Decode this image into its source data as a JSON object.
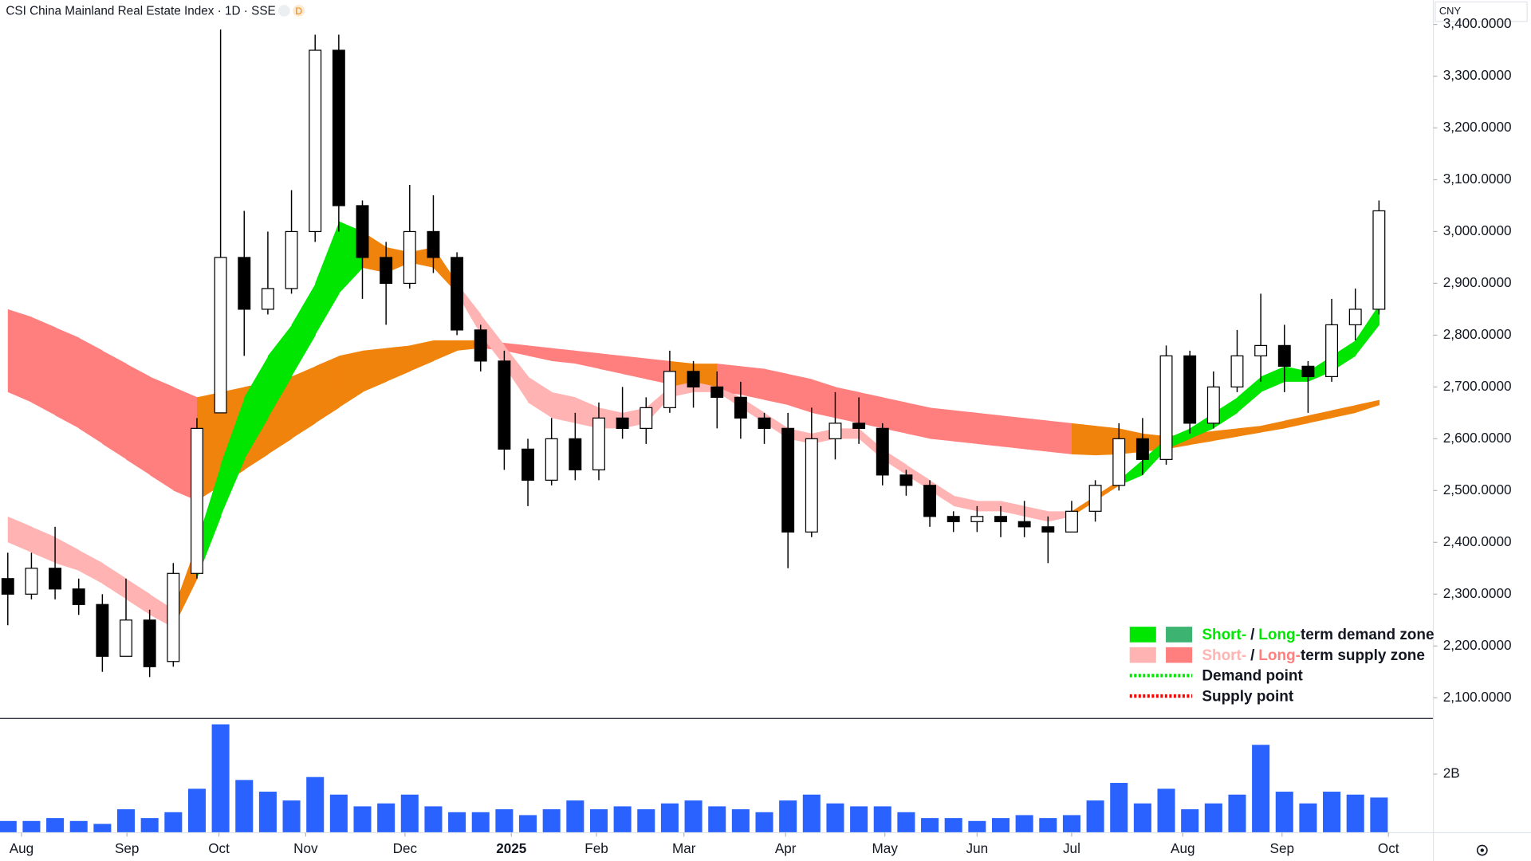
{
  "header": {
    "title": "CSI China Mainland Real Estate Index · 1D · SSE",
    "badge": "D"
  },
  "chart_data": {
    "type": "candlestick",
    "currency": "CNY",
    "open": [
      2330,
      2300,
      2350,
      2310,
      2280,
      2180,
      2250,
      2170,
      2340,
      2650,
      2950,
      2850,
      2890,
      3000,
      3350,
      3050,
      2950,
      2900,
      3000,
      2950,
      2810,
      2750,
      2580,
      2520,
      2600,
      2540,
      2640,
      2620,
      2660,
      2730,
      2700,
      2680,
      2640,
      2620,
      2420,
      2600,
      2630,
      2620,
      2530,
      2510,
      2450,
      2440,
      2450,
      2440,
      2430,
      2420,
      2460,
      2510,
      2600,
      2560,
      2760,
      2630,
      2700,
      2760,
      2780,
      2740,
      2720,
      2820,
      2850
    ],
    "high": [
      2380,
      2380,
      2430,
      2330,
      2300,
      2330,
      2270,
      2360,
      2640,
      3390,
      3040,
      3000,
      3080,
      3380,
      3380,
      3060,
      2980,
      3090,
      3070,
      2960,
      2820,
      2770,
      2600,
      2640,
      2650,
      2670,
      2700,
      2680,
      2770,
      2750,
      2730,
      2710,
      2650,
      2650,
      2660,
      2690,
      2680,
      2630,
      2540,
      2520,
      2460,
      2470,
      2470,
      2480,
      2450,
      2480,
      2520,
      2630,
      2640,
      2780,
      2770,
      2730,
      2810,
      2880,
      2820,
      2750,
      2870,
      2890,
      3060
    ],
    "low": [
      2240,
      2290,
      2290,
      2260,
      2150,
      2180,
      2140,
      2160,
      2330,
      2650,
      2760,
      2840,
      2880,
      2980,
      3000,
      2870,
      2820,
      2890,
      2920,
      2800,
      2730,
      2540,
      2470,
      2510,
      2520,
      2520,
      2600,
      2590,
      2650,
      2660,
      2620,
      2600,
      2590,
      2350,
      2410,
      2560,
      2590,
      2510,
      2490,
      2430,
      2420,
      2420,
      2410,
      2410,
      2360,
      2420,
      2440,
      2500,
      2530,
      2550,
      2610,
      2620,
      2690,
      2710,
      2690,
      2650,
      2710,
      2790,
      2840
    ],
    "close": [
      2300,
      2350,
      2310,
      2280,
      2180,
      2250,
      2160,
      2340,
      2620,
      2950,
      2850,
      2890,
      3000,
      3350,
      3050,
      2950,
      2900,
      3000,
      2950,
      2810,
      2750,
      2580,
      2520,
      2600,
      2540,
      2640,
      2620,
      2660,
      2730,
      2700,
      2680,
      2640,
      2620,
      2420,
      2600,
      2630,
      2620,
      2530,
      2510,
      2450,
      2440,
      2450,
      2440,
      2430,
      2420,
      2460,
      2510,
      2600,
      2560,
      2760,
      2630,
      2700,
      2760,
      2780,
      2740,
      2720,
      2820,
      2850,
      3040
    ],
    "up_color": "#ffffff",
    "down_color": "#000000",
    "border_color": "#000000",
    "xlim": [
      -0.33,
      60.3
    ],
    "xticks": [
      {
        "value": 0.58,
        "label": "Aug"
      },
      {
        "value": 5.04,
        "label": "Sep"
      },
      {
        "value": 8.93,
        "label": "Oct"
      },
      {
        "value": 12.6,
        "label": "Nov"
      },
      {
        "value": 16.8,
        "label": "Dec"
      },
      {
        "value": 21.3,
        "label": "2025",
        "bold": true
      },
      {
        "value": 24.9,
        "label": "Feb"
      },
      {
        "value": 28.6,
        "label": "Mar"
      },
      {
        "value": 32.9,
        "label": "Apr"
      },
      {
        "value": 37.1,
        "label": "May"
      },
      {
        "value": 41.0,
        "label": "Jun"
      },
      {
        "value": 45.0,
        "label": "Jul"
      },
      {
        "value": 49.7,
        "label": "Aug"
      },
      {
        "value": 53.9,
        "label": "Sep"
      },
      {
        "value": 58.4,
        "label": "Oct"
      }
    ],
    "ylim": [
      2060,
      3447
    ],
    "yticks": [
      {
        "value": 2100,
        "label": "2,100.0000"
      },
      {
        "value": 2200,
        "label": "2,200.0000"
      },
      {
        "value": 2300,
        "label": "2,300.0000"
      },
      {
        "value": 2400,
        "label": "2,400.0000"
      },
      {
        "value": 2500,
        "label": "2,500.0000"
      },
      {
        "value": 2600,
        "label": "2,600.0000"
      },
      {
        "value": 2700,
        "label": "2,700.0000"
      },
      {
        "value": 2800,
        "label": "2,800.0000"
      },
      {
        "value": 2900,
        "label": "2,900.0000"
      },
      {
        "value": 3000,
        "label": "3,000.0000"
      },
      {
        "value": 3100,
        "label": "3,100.0000"
      },
      {
        "value": 3200,
        "label": "3,200.0000"
      },
      {
        "value": 3300,
        "label": "3,300.0000"
      },
      {
        "value": 3400,
        "label": "3,400.0000"
      }
    ],
    "grid": false,
    "zones": [
      {
        "upper": [
          2850,
          2835,
          2815,
          2795,
          2770,
          2745,
          2720,
          2700,
          2680,
          2690,
          2700,
          2710,
          2720,
          2740,
          2760,
          2770,
          2775,
          2780,
          2790,
          2790,
          2790,
          2785,
          2780,
          2775,
          2770,
          2765,
          2760,
          2755,
          2750,
          2745,
          2745,
          2740,
          2735,
          2725,
          2715,
          2700,
          2690,
          2680,
          2670,
          2660,
          2655,
          2650,
          2645,
          2640,
          2635,
          2630,
          2625,
          2620,
          2610,
          2605,
          2610,
          2615,
          2620,
          2625,
          2635,
          2645,
          2655,
          2665,
          2675
        ],
        "lower": [
          2690,
          2670,
          2645,
          2620,
          2590,
          2560,
          2530,
          2500,
          2480,
          2510,
          2540,
          2570,
          2600,
          2630,
          2660,
          2690,
          2710,
          2730,
          2750,
          2770,
          2775,
          2770,
          2760,
          2750,
          2745,
          2735,
          2725,
          2715,
          2705,
          2695,
          2690,
          2685,
          2675,
          2665,
          2650,
          2640,
          2630,
          2620,
          2610,
          2600,
          2595,
          2590,
          2585,
          2580,
          2575,
          2570,
          2568,
          2570,
          2575,
          2580,
          2588,
          2596,
          2604,
          2612,
          2620,
          2630,
          2640,
          2650,
          2665
        ],
        "colors": [
          "#ff7f7f",
          "#ff7f7f",
          "#ff7f7f",
          "#ff7f7f",
          "#ff7f7f",
          "#ff7f7f",
          "#ff7f7f",
          "#ff7f7f",
          "#f0830c",
          "#f0830c",
          "#f0830c",
          "#f0830c",
          "#f0830c",
          "#f0830c",
          "#f0830c",
          "#f0830c",
          "#f0830c",
          "#f0830c",
          "#f0830c",
          "#f0830c",
          "#ff7f7f",
          "#ff7f7f",
          "#ff7f7f",
          "#ff7f7f",
          "#ff7f7f",
          "#ff7f7f",
          "#ff7f7f",
          "#ff7f7f",
          "#f0830c",
          "#f0830c",
          "#ff7f7f",
          "#ff7f7f",
          "#ff7f7f",
          "#ff7f7f",
          "#ff7f7f",
          "#ff7f7f",
          "#ff7f7f",
          "#ff7f7f",
          "#ff7f7f",
          "#ff7f7f",
          "#ff7f7f",
          "#ff7f7f",
          "#ff7f7f",
          "#ff7f7f",
          "#ff7f7f",
          "#f0830c",
          "#f0830c",
          "#f0830c",
          "#f0830c",
          "#f0830c",
          "#f0830c",
          "#f0830c",
          "#f0830c",
          "#f0830c",
          "#f0830c",
          "#f0830c",
          "#f0830c",
          "#f0830c"
        ]
      },
      {
        "upper": [
          2450,
          2430,
          2410,
          2385,
          2360,
          2330,
          2300,
          2270,
          2400,
          2550,
          2680,
          2760,
          2820,
          2900,
          3020,
          3000,
          2970,
          2960,
          2970,
          2900,
          2840,
          2780,
          2720,
          2690,
          2680,
          2660,
          2650,
          2660,
          2700,
          2710,
          2700,
          2680,
          2650,
          2620,
          2610,
          2620,
          2620,
          2580,
          2550,
          2520,
          2490,
          2480,
          2480,
          2470,
          2460,
          2460,
          2490,
          2520,
          2560,
          2600,
          2620,
          2650,
          2680,
          2720,
          2740,
          2730,
          2760,
          2790,
          2860
        ],
        "lower": [
          2400,
          2380,
          2360,
          2345,
          2320,
          2290,
          2260,
          2235,
          2330,
          2450,
          2560,
          2640,
          2720,
          2800,
          2880,
          2930,
          2920,
          2940,
          2930,
          2880,
          2800,
          2740,
          2670,
          2640,
          2630,
          2620,
          2620,
          2630,
          2680,
          2690,
          2690,
          2660,
          2630,
          2600,
          2590,
          2600,
          2600,
          2560,
          2530,
          2500,
          2470,
          2460,
          2460,
          2450,
          2440,
          2450,
          2480,
          2510,
          2530,
          2580,
          2600,
          2620,
          2650,
          2690,
          2710,
          2710,
          2730,
          2760,
          2820
        ],
        "colors": [
          "#ffb3b3",
          "#ffb3b3",
          "#ffb3b3",
          "#ffb3b3",
          "#ffb3b3",
          "#ffb3b3",
          "#ffb3b3",
          "#f0830c",
          "#00e600",
          "#00e600",
          "#00e600",
          "#00e600",
          "#00e600",
          "#00e600",
          "#00e600",
          "#f0830c",
          "#f0830c",
          "#f0830c",
          "#f0830c",
          "#ffb3b3",
          "#ffb3b3",
          "#ffb3b3",
          "#ffb3b3",
          "#ffb3b3",
          "#ffb3b3",
          "#ffb3b3",
          "#ffb3b3",
          "#ffb3b3",
          "#ffb3b3",
          "#ffb3b3",
          "#ffb3b3",
          "#ffb3b3",
          "#ffb3b3",
          "#ffb3b3",
          "#ffb3b3",
          "#ffb3b3",
          "#ffb3b3",
          "#ffb3b3",
          "#ffb3b3",
          "#ffb3b3",
          "#ffb3b3",
          "#ffb3b3",
          "#ffb3b3",
          "#ffb3b3",
          "#ffb3b3",
          "#f0830c",
          "#f0830c",
          "#00e600",
          "#00e600",
          "#00e600",
          "#00e600",
          "#00e600",
          "#00e600",
          "#00e600",
          "#00e600",
          "#00e600",
          "#00e600",
          "#00e600"
        ]
      }
    ],
    "volume": {
      "values": [
        0.4,
        0.4,
        0.5,
        0.4,
        0.3,
        0.8,
        0.5,
        0.7,
        1.5,
        3.7,
        1.8,
        1.4,
        1.1,
        1.9,
        1.3,
        0.9,
        1.0,
        1.3,
        0.9,
        0.7,
        0.7,
        0.8,
        0.6,
        0.8,
        1.1,
        0.8,
        0.9,
        0.8,
        1.0,
        1.1,
        0.9,
        0.8,
        0.7,
        1.1,
        1.3,
        1.0,
        0.9,
        0.9,
        0.7,
        0.5,
        0.5,
        0.4,
        0.5,
        0.6,
        0.5,
        0.6,
        1.1,
        1.7,
        1.0,
        1.5,
        0.8,
        1.0,
        1.3,
        3.0,
        1.4,
        1.0,
        1.4,
        1.3,
        1.2
      ],
      "color": "#2962ff",
      "ylim": [
        0,
        3.9
      ],
      "yticks": [
        {
          "value": 2,
          "label": "2B"
        }
      ]
    },
    "legend": {
      "position": "lower right",
      "items": [
        {
          "swatches": [
            "#00e600",
            "#3cb371"
          ],
          "parts": [
            {
              "text": "Short-",
              "color": "#00e600"
            },
            {
              "text": "/"
            },
            {
              "text": "Long-",
              "color": "#00e600"
            },
            {
              "text": "term demand zone"
            }
          ]
        },
        {
          "swatches": [
            "#ffb3b3",
            "#ff7f7f"
          ],
          "parts": [
            {
              "text": "Short-",
              "color": "#ffb3b3"
            },
            {
              "text": "/"
            },
            {
              "text": "Long-",
              "color": "#ff7f7f"
            },
            {
              "text": "term supply zone"
            }
          ]
        },
        {
          "line": "#00e600",
          "parts": [
            {
              "text": "Demand point"
            }
          ]
        },
        {
          "line": "#ff0000",
          "parts": [
            {
              "text": "Supply point"
            }
          ]
        }
      ]
    }
  }
}
